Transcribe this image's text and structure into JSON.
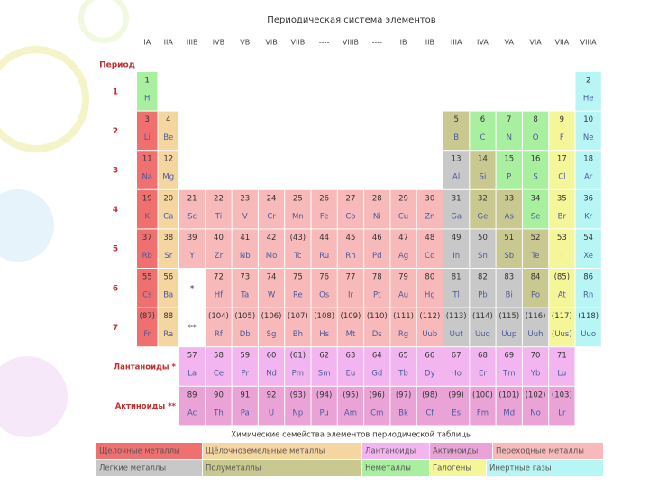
{
  "header": {
    "title": "Периодическая система элементов",
    "period_label": "Период"
  },
  "groups": [
    "IA",
    "IIA",
    "IIIB",
    "IVB",
    "VB",
    "VIB",
    "VIIB",
    "----",
    "VIIIB",
    "----",
    "IB",
    "IIB",
    "IIIA",
    "IVA",
    "VA",
    "VIA",
    "VIIA",
    "VIIIA"
  ],
  "periods": [
    {
      "label": "1",
      "cells": [
        [
          "1",
          "H",
          "#a8f0a0"
        ],
        [
          "2",
          "He",
          "#b8f5f5"
        ]
      ]
    },
    {
      "label": "2",
      "cells": [
        [
          "3",
          "Li",
          "#f07070"
        ],
        [
          "4",
          "Be",
          "#f5d5a0"
        ],
        [
          "5",
          "B",
          "#c8c890"
        ],
        [
          "6",
          "C",
          "#a8f0a0"
        ],
        [
          "7",
          "N",
          "#a8f0a0"
        ],
        [
          "8",
          "O",
          "#a8f0a0"
        ],
        [
          "9",
          "F",
          "#f5f59a"
        ],
        [
          "10",
          "Ne",
          "#b8f5f5"
        ]
      ]
    },
    {
      "label": "3",
      "cells": [
        [
          "11",
          "Na",
          "#f07070"
        ],
        [
          "12",
          "Mg",
          "#f5d5a0"
        ],
        [
          "13",
          "Al",
          "#c8c8c8"
        ],
        [
          "14",
          "Si",
          "#c8c890"
        ],
        [
          "15",
          "P",
          "#a8f0a0"
        ],
        [
          "16",
          "S",
          "#a8f0a0"
        ],
        [
          "17",
          "Cl",
          "#f5f59a"
        ],
        [
          "18",
          "Ar",
          "#b8f5f5"
        ]
      ]
    },
    {
      "label": "4",
      "cells": [
        [
          "19",
          "K",
          "#f07070"
        ],
        [
          "20",
          "Ca",
          "#f5d5a0"
        ],
        [
          "21",
          "Sc",
          "#f7b9b9"
        ],
        [
          "22",
          "Ti",
          "#f7b9b9"
        ],
        [
          "23",
          "V",
          "#f7b9b9"
        ],
        [
          "24",
          "Cr",
          "#f7b9b9"
        ],
        [
          "25",
          "Mn",
          "#f7b9b9"
        ],
        [
          "26",
          "Fe",
          "#f7b9b9"
        ],
        [
          "27",
          "Co",
          "#f7b9b9"
        ],
        [
          "28",
          "Ni",
          "#f7b9b9"
        ],
        [
          "29",
          "Cu",
          "#f7b9b9"
        ],
        [
          "30",
          "Zn",
          "#f7b9b9"
        ],
        [
          "31",
          "Ga",
          "#c8c8c8"
        ],
        [
          "32",
          "Ge",
          "#c8c890"
        ],
        [
          "33",
          "As",
          "#c8c890"
        ],
        [
          "34",
          "Se",
          "#a8f0a0"
        ],
        [
          "35",
          "Br",
          "#f5f59a"
        ],
        [
          "36",
          "Kr",
          "#b8f5f5"
        ]
      ]
    },
    {
      "label": "5",
      "cells": [
        [
          "37",
          "Rb",
          "#f07070"
        ],
        [
          "38",
          "Sr",
          "#f5d5a0"
        ],
        [
          "39",
          "Y",
          "#f7b9b9"
        ],
        [
          "40",
          "Zr",
          "#f7b9b9"
        ],
        [
          "41",
          "Nb",
          "#f7b9b9"
        ],
        [
          "42",
          "Mo",
          "#f7b9b9"
        ],
        [
          "(43)",
          "Tc",
          "#f7b9b9"
        ],
        [
          "44",
          "Ru",
          "#f7b9b9"
        ],
        [
          "45",
          "Rh",
          "#f7b9b9"
        ],
        [
          "46",
          "Pd",
          "#f7b9b9"
        ],
        [
          "47",
          "Ag",
          "#f7b9b9"
        ],
        [
          "48",
          "Cd",
          "#f7b9b9"
        ],
        [
          "49",
          "In",
          "#c8c8c8"
        ],
        [
          "50",
          "Sn",
          "#c8c8c8"
        ],
        [
          "51",
          "Sb",
          "#c8c890"
        ],
        [
          "52",
          "Te",
          "#c8c890"
        ],
        [
          "53",
          "I",
          "#f5f59a"
        ],
        [
          "54",
          "Xe",
          "#b8f5f5"
        ]
      ]
    },
    {
      "label": "6",
      "cells": [
        [
          "55",
          "Cs",
          "#f07070"
        ],
        [
          "56",
          "Ba",
          "#f5d5a0"
        ],
        [
          "*"
        ],
        [
          "72",
          "Hf",
          "#f7b9b9"
        ],
        [
          "73",
          "Ta",
          "#f7b9b9"
        ],
        [
          "74",
          "W",
          "#f7b9b9"
        ],
        [
          "75",
          "Re",
          "#f7b9b9"
        ],
        [
          "76",
          "Os",
          "#f7b9b9"
        ],
        [
          "77",
          "Ir",
          "#f7b9b9"
        ],
        [
          "78",
          "Pt",
          "#f7b9b9"
        ],
        [
          "79",
          "Au",
          "#f7b9b9"
        ],
        [
          "80",
          "Hg",
          "#f7b9b9"
        ],
        [
          "81",
          "Tl",
          "#c8c8c8"
        ],
        [
          "82",
          "Pb",
          "#c8c8c8"
        ],
        [
          "83",
          "Bi",
          "#c8c8c8"
        ],
        [
          "84",
          "Po",
          "#c8c890"
        ],
        [
          "(85)",
          "At",
          "#f5f59a"
        ],
        [
          "86",
          "Rn",
          "#b8f5f5"
        ]
      ]
    },
    {
      "label": "7",
      "cells": [
        [
          "(87)",
          "Fr",
          "#f07070"
        ],
        [
          "88",
          "Ra",
          "#f5d5a0"
        ],
        [
          "**"
        ],
        [
          "(104)",
          "Rf",
          "#f7b9b9"
        ],
        [
          "(105)",
          "Db",
          "#f7b9b9"
        ],
        [
          "(106)",
          "Sg",
          "#f7b9b9"
        ],
        [
          "(107)",
          "Bh",
          "#f7b9b9"
        ],
        [
          "(108)",
          "Hs",
          "#f7b9b9"
        ],
        [
          "(109)",
          "Mt",
          "#f7b9b9"
        ],
        [
          "(110)",
          "Ds",
          "#f7b9b9"
        ],
        [
          "(111)",
          "Rg",
          "#f7b9b9"
        ],
        [
          "(112)",
          "Uub",
          "#f7b9b9"
        ],
        [
          "(113)",
          "Uut",
          "#c8c8c8"
        ],
        [
          "(114)",
          "Uuq",
          "#c8c8c8"
        ],
        [
          "(115)",
          "Uup",
          "#c8c8c8"
        ],
        [
          "(116)",
          "Uuh",
          "#c8c8c8"
        ],
        [
          "(117)",
          "(Uus)",
          "#f5f59a"
        ],
        [
          "(118)",
          "Uuo",
          "#b8f5f5"
        ]
      ]
    }
  ],
  "series": [
    {
      "label": "Лантаноиды *",
      "cells": [
        [
          "57",
          "La",
          "#f3b5ef"
        ],
        [
          "58",
          "Ce",
          "#f3b5ef"
        ],
        [
          "59",
          "Pr",
          "#f3b5ef"
        ],
        [
          "60",
          "Nd",
          "#f3b5ef"
        ],
        [
          "(61)",
          "Pm",
          "#f3b5ef"
        ],
        [
          "62",
          "Sm",
          "#f3b5ef"
        ],
        [
          "63",
          "Eu",
          "#f3b5ef"
        ],
        [
          "64",
          "Gd",
          "#f3b5ef"
        ],
        [
          "65",
          "Tb",
          "#f3b5ef"
        ],
        [
          "66",
          "Dy",
          "#f3b5ef"
        ],
        [
          "67",
          "Ho",
          "#f3b5ef"
        ],
        [
          "68",
          "Er",
          "#f3b5ef"
        ],
        [
          "69",
          "Tm",
          "#f3b5ef"
        ],
        [
          "70",
          "Yb",
          "#f3b5ef"
        ],
        [
          "71",
          "Lu",
          "#f3b5ef"
        ]
      ]
    },
    {
      "label": "Актиноиды **",
      "cells": [
        [
          "89",
          "Ac",
          "#e9a3d6"
        ],
        [
          "90",
          "Th",
          "#e9a3d6"
        ],
        [
          "91",
          "Pa",
          "#e9a3d6"
        ],
        [
          "92",
          "U",
          "#e9a3d6"
        ],
        [
          "(93)",
          "Np",
          "#e9a3d6"
        ],
        [
          "(94)",
          "Pu",
          "#e9a3d6"
        ],
        [
          "(95)",
          "Am",
          "#e9a3d6"
        ],
        [
          "(96)",
          "Cm",
          "#e9a3d6"
        ],
        [
          "(97)",
          "Bk",
          "#e9a3d6"
        ],
        [
          "(98)",
          "Cf",
          "#e9a3d6"
        ],
        [
          "(99)",
          "Es",
          "#e9a3d6"
        ],
        [
          "(100)",
          "Fm",
          "#e9a3d6"
        ],
        [
          "(101)",
          "Md",
          "#e9a3d6"
        ],
        [
          "(102)",
          "No",
          "#e9a3d6"
        ],
        [
          "(103)",
          "Lr",
          "#e9a3d6"
        ]
      ]
    }
  ],
  "legend": {
    "title": "Химические семейства элементов периодической таблицы",
    "rows": [
      [
        [
          "Щелочные металлы",
          "#f07070"
        ],
        [
          "Щёлочноземельные металлы",
          "#f5d5a0"
        ],
        [
          "Лантаноиды",
          "#f3b5ef"
        ],
        [
          "Актиноиды",
          "#e9a3d6"
        ],
        [
          "Переходные металлы",
          "#f7b9b9"
        ]
      ],
      [
        [
          "Легкие металлы",
          "#c8c8c8"
        ],
        [
          "Полуметаллы",
          "#c8c890"
        ],
        [
          "Неметаллы",
          "#a8f0a0"
        ],
        [
          "Галогены",
          "#f5f59a"
        ],
        [
          "Инертные газы",
          "#b8f5f5"
        ]
      ]
    ]
  }
}
